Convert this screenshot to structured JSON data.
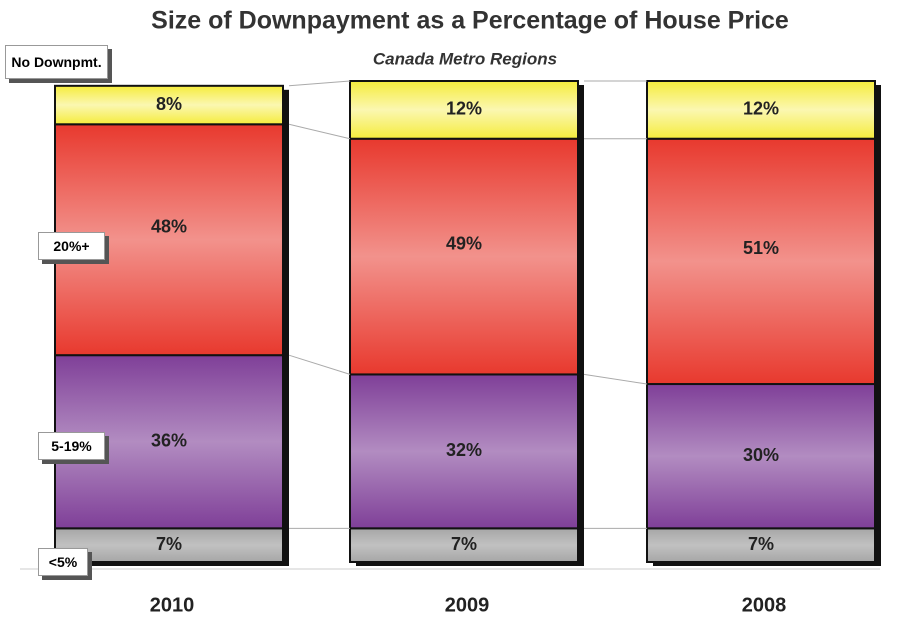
{
  "chart_data": {
    "type": "stacked_bar",
    "title": "Size of Downpayment as a Percentage of House Price",
    "subtitle": "Canada Metro Regions",
    "categories": [
      "2010",
      "2009",
      "2008"
    ],
    "ylim": [
      0,
      100
    ],
    "series": [
      {
        "name": "<5%",
        "color": "#a6a6a6",
        "values": [
          7,
          7,
          7
        ],
        "value_labels": [
          "7%",
          "7%",
          "7%"
        ]
      },
      {
        "name": "5-19%",
        "color": "#7f3f98",
        "values": [
          36,
          32,
          30
        ],
        "value_labels": [
          "36%",
          "32%",
          "30%"
        ]
      },
      {
        "name": "20%+",
        "color": "#e8392e",
        "values": [
          48,
          49,
          51
        ],
        "value_labels": [
          "48%",
          "49%",
          "51%"
        ]
      },
      {
        "name": "No Downpmt.",
        "color": "#f5ec3c",
        "values": [
          8,
          12,
          12
        ],
        "value_labels": [
          "8%",
          "12%",
          "12%"
        ]
      }
    ]
  }
}
